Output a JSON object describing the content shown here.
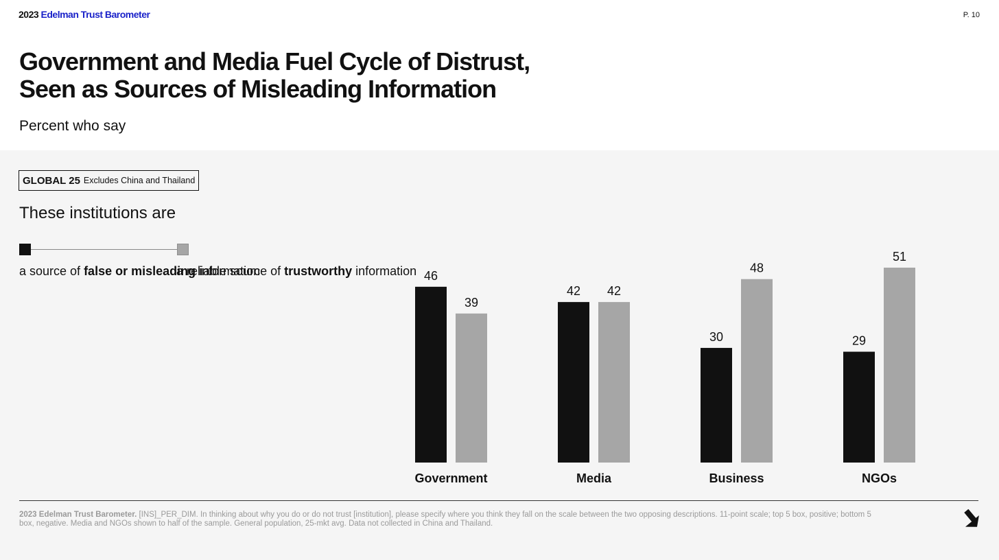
{
  "header": {
    "brand_year": "2023",
    "brand_name": "Edelman Trust Barometer",
    "page_number": "P. 10"
  },
  "title_lines": [
    "Government and Media Fuel Cycle of Distrust,",
    "Seen as Sources of Misleading Information"
  ],
  "subtitle": "Percent who say",
  "sample": {
    "label": "GLOBAL 25",
    "note": "Excludes China and Thailand"
  },
  "institutions_heading": "These institutions are",
  "legend": {
    "false": {
      "pre": "a source of ",
      "bold": "false or misleading",
      "post": " information",
      "color": "#111111"
    },
    "reliable": {
      "pre": "a reliable source of ",
      "bold": "trustworthy",
      "post": " information",
      "color": "#a6a6a6"
    }
  },
  "chart_data": {
    "type": "bar",
    "categories": [
      "Government",
      "Media",
      "Business",
      "NGOs"
    ],
    "series": [
      {
        "name": "a source of false or misleading information",
        "values": [
          46,
          42,
          30,
          29
        ],
        "color": "#111111"
      },
      {
        "name": "a reliable source of trustworthy information",
        "values": [
          39,
          42,
          48,
          51
        ],
        "color": "#a6a6a6"
      }
    ],
    "title": "Government and Media Fuel Cycle of Distrust, Seen as Sources of Misleading Information",
    "ylabel": "",
    "xlabel": "",
    "ylim": [
      0,
      51
    ],
    "grid": false,
    "legend": "top-left",
    "data_labels": true
  },
  "footnote": {
    "source": "2023 Edelman Trust Barometer.",
    "text": " [INS]_PER_DIM. In thinking about why you do or do not trust [institution], please specify where you think they fall on the scale between the two opposing descriptions. 11-point scale; top 5 box, positive; bottom 5 box, negative. Media and NGOs shown to half of the sample. General population, 25-mkt avg. Data not collected in China and Thailand."
  },
  "navigation": {
    "next_icon": "arrow-down-right-icon"
  }
}
